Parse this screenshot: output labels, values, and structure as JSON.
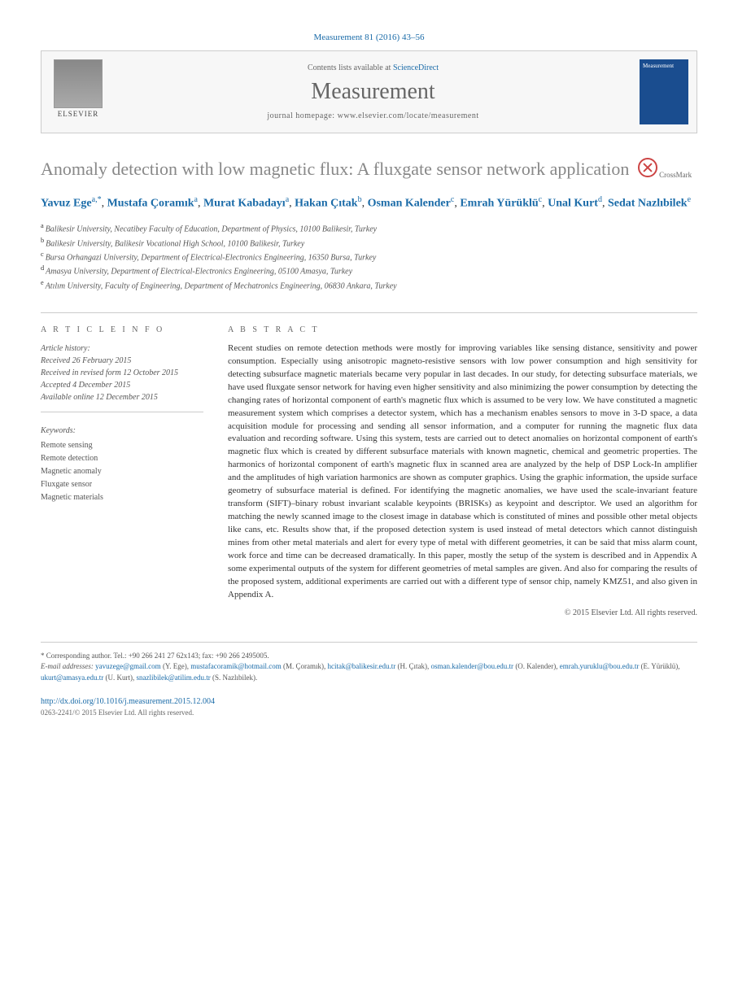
{
  "citation": "Measurement 81 (2016) 43–56",
  "header": {
    "contents_prefix": "Contents lists available at ",
    "contents_link": "ScienceDirect",
    "journal_name": "Measurement",
    "homepage_prefix": "journal homepage: ",
    "homepage_url": "www.elsevier.com/locate/measurement",
    "publisher": "ELSEVIER",
    "cover_text": "Measurement"
  },
  "crossmark": "CrossMark",
  "title": "Anomaly detection with low magnetic flux: A fluxgate sensor network application",
  "authors": [
    {
      "name": "Yavuz Ege",
      "affil": "a,*"
    },
    {
      "name": "Mustafa Çoramık",
      "affil": "a"
    },
    {
      "name": "Murat Kabadayı",
      "affil": "a"
    },
    {
      "name": "Hakan Çıtak",
      "affil": "b"
    },
    {
      "name": "Osman Kalender",
      "affil": "c"
    },
    {
      "name": "Emrah Yürüklü",
      "affil": "c"
    },
    {
      "name": "Unal Kurt",
      "affil": "d"
    },
    {
      "name": "Sedat Nazlıbilek",
      "affil": "e"
    }
  ],
  "affiliations": [
    {
      "sup": "a",
      "text": "Balikesir University, Necatibey Faculty of Education, Department of Physics, 10100 Balikesir, Turkey"
    },
    {
      "sup": "b",
      "text": "Balikesir University, Balikesir Vocational High School, 10100 Balikesir, Turkey"
    },
    {
      "sup": "c",
      "text": "Bursa Orhangazi University, Department of Electrical-Electronics Engineering, 16350 Bursa, Turkey"
    },
    {
      "sup": "d",
      "text": "Amasya University, Department of Electrical-Electronics Engineering, 05100 Amasya, Turkey"
    },
    {
      "sup": "e",
      "text": "Atılım University, Faculty of Engineering, Department of Mechatronics Engineering, 06830 Ankara, Turkey"
    }
  ],
  "article_info": {
    "heading": "A R T I C L E   I N F O",
    "history_label": "Article history:",
    "received": "Received 26 February 2015",
    "revised": "Received in revised form 12 October 2015",
    "accepted": "Accepted 4 December 2015",
    "online": "Available online 12 December 2015"
  },
  "keywords": {
    "label": "Keywords:",
    "items": [
      "Remote sensing",
      "Remote detection",
      "Magnetic anomaly",
      "Fluxgate sensor",
      "Magnetic materials"
    ]
  },
  "abstract": {
    "heading": "A B S T R A C T",
    "text": "Recent studies on remote detection methods were mostly for improving variables like sensing distance, sensitivity and power consumption. Especially using anisotropic magneto-resistive sensors with low power consumption and high sensitivity for detecting subsurface magnetic materials became very popular in last decades. In our study, for detecting subsurface materials, we have used fluxgate sensor network for having even higher sensitivity and also minimizing the power consumption by detecting the changing rates of horizontal component of earth's magnetic flux which is assumed to be very low. We have constituted a magnetic measurement system which comprises a detector system, which has a mechanism enables sensors to move in 3-D space, a data acquisition module for processing and sending all sensor information, and a computer for running the magnetic flux data evaluation and recording software. Using this system, tests are carried out to detect anomalies on horizontal component of earth's magnetic flux which is created by different subsurface materials with known magnetic, chemical and geometric properties. The harmonics of horizontal component of earth's magnetic flux in scanned area are analyzed by the help of DSP Lock-In amplifier and the amplitudes of high variation harmonics are shown as computer graphics. Using the graphic information, the upside surface geometry of subsurface material is defined. For identifying the magnetic anomalies, we have used the scale-invariant feature transform (SIFT)–binary robust invariant scalable keypoints (BRISKs) as keypoint and descriptor. We used an algorithm for matching the newly scanned image to the closest image in database which is constituted of mines and possible other metal objects like cans, etc. Results show that, if the proposed detection system is used instead of metal detectors which cannot distinguish mines from other metal materials and alert for every type of metal with different geometries, it can be said that miss alarm count, work force and time can be decreased dramatically. In this paper, mostly the setup of the system is described and in Appendix A some experimental outputs of the system for different geometries of metal samples are given. And also for comparing the results of the proposed system, additional experiments are carried out with a different type of sensor chip, namely KMZ51, and also given in Appendix A.",
    "copyright": "© 2015 Elsevier Ltd. All rights reserved."
  },
  "footer": {
    "corresponding": "* Corresponding author. Tel.: +90 266 241 27 62x143; fax: +90 266 2495005.",
    "email_label": "E-mail addresses: ",
    "emails": [
      {
        "addr": "yavuzege@gmail.com",
        "who": "(Y. Ege)"
      },
      {
        "addr": "mustafacoramik@hotmail.com",
        "who": "(M. Çoramık)"
      },
      {
        "addr": "hcitak@balikesir.edu.tr",
        "who": "(H. Çıtak)"
      },
      {
        "addr": "osman.kalender@bou.edu.tr",
        "who": "(O. Kalender)"
      },
      {
        "addr": "emrah.yuruklu@bou.edu.tr",
        "who": "(E. Yürüklü)"
      },
      {
        "addr": "ukurt@amasya.edu.tr",
        "who": "(U. Kurt)"
      },
      {
        "addr": "snazlibilek@atilim.edu.tr",
        "who": "(S. Nazlıbilek)"
      }
    ],
    "doi": "http://dx.doi.org/10.1016/j.measurement.2015.12.004",
    "issn": "0263-2241/© 2015 Elsevier Ltd. All rights reserved."
  },
  "colors": {
    "link": "#1a6ba8",
    "title_gray": "#888888",
    "text": "#333333",
    "border": "#cccccc",
    "cover_bg": "#1a4d8f"
  }
}
